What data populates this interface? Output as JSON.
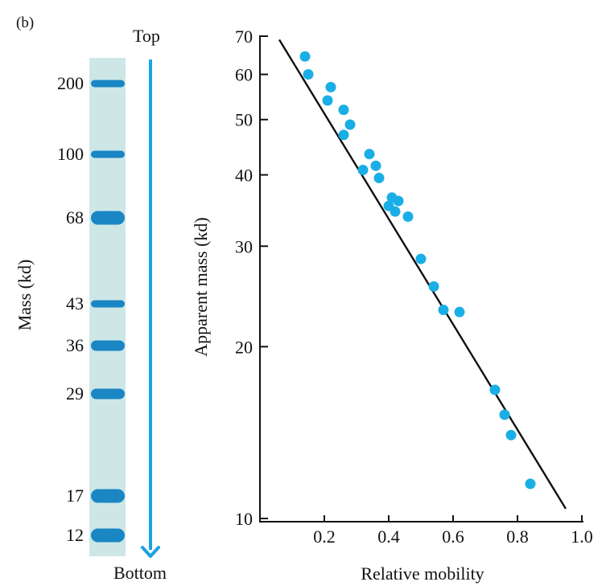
{
  "panel_label": "(b)",
  "gel": {
    "top_label": "Top",
    "bottom_label": "Bottom",
    "axis_label": "Mass (kd)",
    "lane_color": "#cde7e7",
    "band_color": "#1a86c4",
    "arrow_color": "#1aa3e0",
    "bands": [
      {
        "mass": "200",
        "thickness": "thin"
      },
      {
        "mass": "100",
        "thickness": "thin"
      },
      {
        "mass": "68",
        "thickness": "thick"
      },
      {
        "mass": "43",
        "thickness": "thin"
      },
      {
        "mass": "36",
        "thickness": "medium"
      },
      {
        "mass": "29",
        "thickness": "medium"
      },
      {
        "mass": "17",
        "thickness": "thick"
      },
      {
        "mass": "12",
        "thickness": "thick"
      }
    ]
  },
  "chart_data": {
    "type": "scatter",
    "title": "",
    "xlabel": "Relative mobility",
    "ylabel": "Apparent mass (kd)",
    "xlim": [
      0.0,
      1.0
    ],
    "ylim": [
      10,
      70
    ],
    "yscale": "log",
    "xticks": [
      "0.2",
      "0.4",
      "0.6",
      "0.8",
      "1.0"
    ],
    "yticks": [
      "10",
      "20",
      "30",
      "40",
      "50",
      "60",
      "70"
    ],
    "grid": false,
    "point_color": "#1aaee6",
    "line_color": "#111111",
    "points": [
      {
        "x": 0.14,
        "y": 64.5
      },
      {
        "x": 0.15,
        "y": 60.0
      },
      {
        "x": 0.22,
        "y": 57.0
      },
      {
        "x": 0.21,
        "y": 54.0
      },
      {
        "x": 0.26,
        "y": 52.0
      },
      {
        "x": 0.28,
        "y": 49.0
      },
      {
        "x": 0.26,
        "y": 47.0
      },
      {
        "x": 0.34,
        "y": 43.5
      },
      {
        "x": 0.36,
        "y": 41.5
      },
      {
        "x": 0.32,
        "y": 40.8
      },
      {
        "x": 0.37,
        "y": 39.5
      },
      {
        "x": 0.41,
        "y": 36.5
      },
      {
        "x": 0.43,
        "y": 36.0
      },
      {
        "x": 0.4,
        "y": 35.3
      },
      {
        "x": 0.42,
        "y": 34.5
      },
      {
        "x": 0.46,
        "y": 33.8
      },
      {
        "x": 0.5,
        "y": 28.5
      },
      {
        "x": 0.54,
        "y": 25.5
      },
      {
        "x": 0.57,
        "y": 23.2
      },
      {
        "x": 0.62,
        "y": 23.0
      },
      {
        "x": 0.73,
        "y": 16.8
      },
      {
        "x": 0.76,
        "y": 15.2
      },
      {
        "x": 0.78,
        "y": 14.0
      },
      {
        "x": 0.84,
        "y": 11.5
      }
    ],
    "fit_line": {
      "x": [
        0.06,
        0.95
      ],
      "y": [
        69.0,
        10.4
      ]
    }
  }
}
